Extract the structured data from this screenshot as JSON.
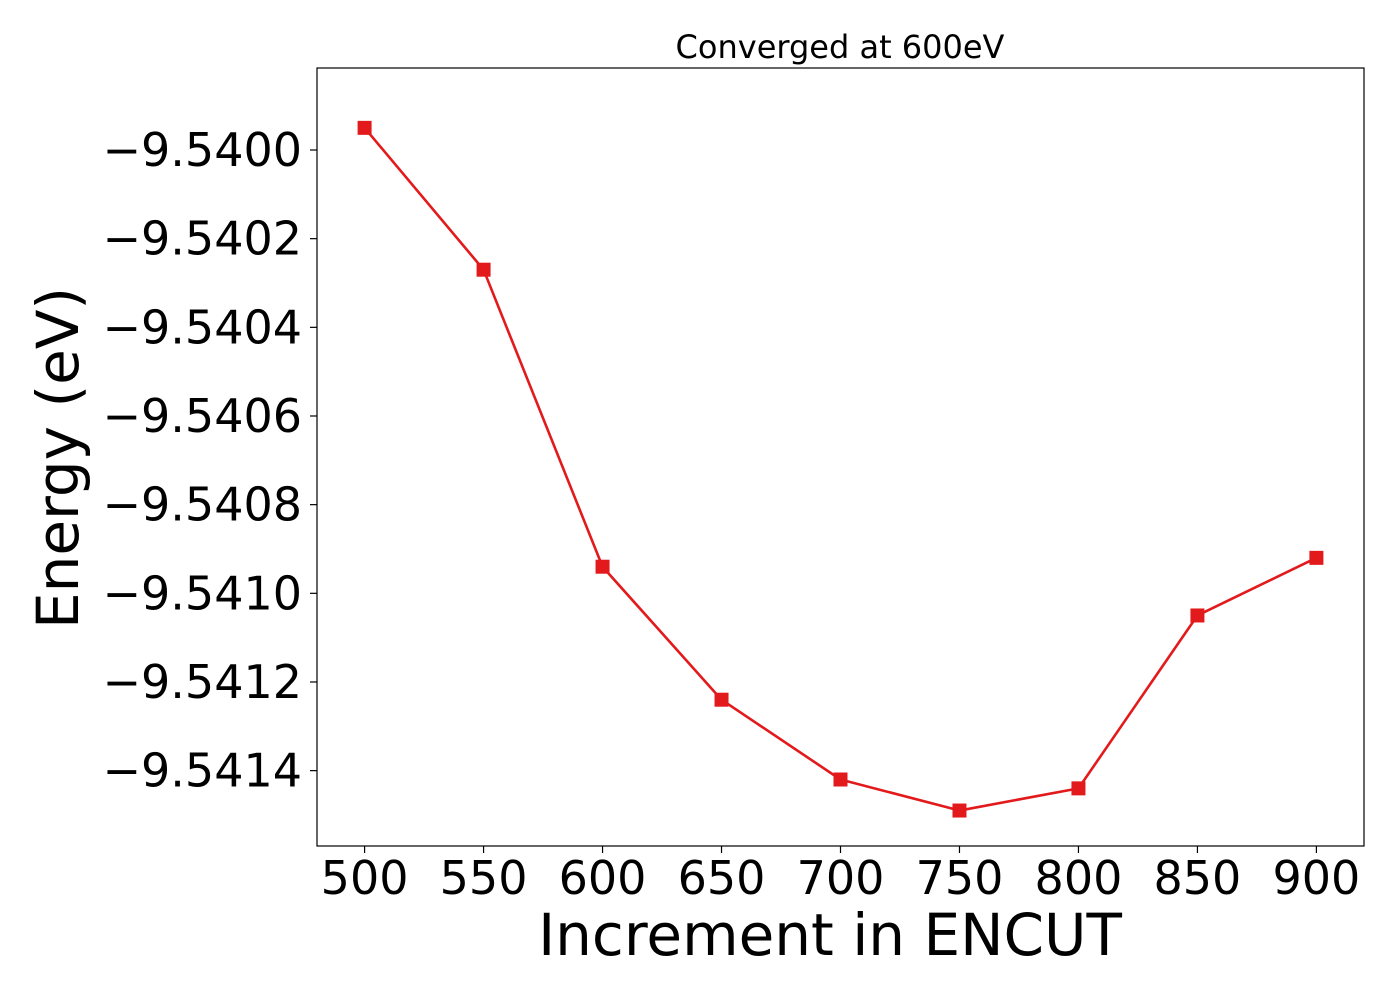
{
  "chart_data": {
    "type": "line",
    "title": "Converged at 600eV",
    "xlabel": "Increment in ENCUT",
    "ylabel": "Energy (eV)",
    "x": [
      500,
      550,
      600,
      650,
      700,
      750,
      800,
      850,
      900
    ],
    "series": [
      {
        "values": [
          -9.53995,
          -9.54027,
          -9.54094,
          -9.54124,
          -9.54142,
          -9.54149,
          -9.54144,
          -9.54105,
          -9.54092
        ],
        "color": "#e31a1c",
        "marker": "square"
      }
    ],
    "xticks": [
      500,
      550,
      600,
      650,
      700,
      750,
      800,
      850,
      900
    ],
    "xtick_labels": [
      "500",
      "550",
      "600",
      "650",
      "700",
      "750",
      "800",
      "850",
      "900"
    ],
    "yticks": [
      -9.54,
      -9.5402,
      -9.5404,
      -9.5406,
      -9.5408,
      -9.541,
      -9.5412,
      -9.5414
    ],
    "ytick_labels": [
      "−9.5400",
      "−9.5402",
      "−9.5404",
      "−9.5406",
      "−9.5408",
      "−9.5410",
      "−9.5412",
      "−9.5414"
    ],
    "xlim": [
      480,
      920
    ],
    "ylim": [
      -9.54157,
      -9.539815
    ],
    "grid": false,
    "legend": "none"
  }
}
